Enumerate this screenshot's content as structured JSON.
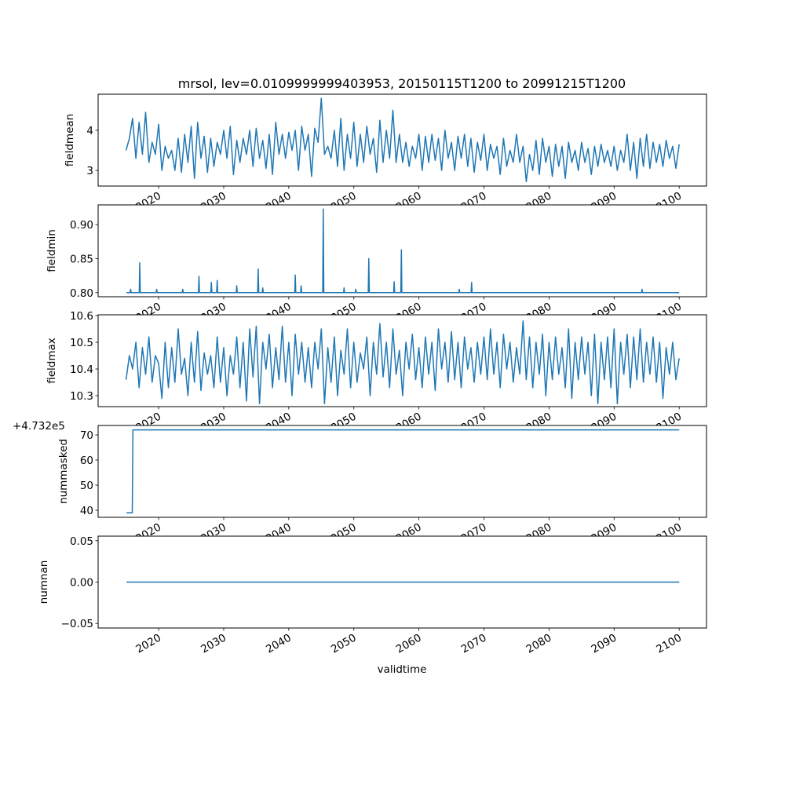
{
  "figure": {
    "title": "mrsol, lev=0.0109999999403953, 20150115T1200 to 20991215T1200",
    "xlabel": "validtime",
    "line_color": "#1f77b4"
  },
  "chart_data": [
    {
      "type": "line",
      "ylabel": "fieldmean",
      "xlim": [
        2010.7,
        2104.2
      ],
      "ylim": [
        2.61,
        4.9
      ],
      "yticks": [
        3,
        4
      ],
      "ytick_labels": [
        "3",
        "4"
      ],
      "xticks": [
        2020,
        2030,
        2040,
        2050,
        2060,
        2070,
        2080,
        2090,
        2100
      ],
      "xtick_labels": [
        "2020",
        "2030",
        "2040",
        "2050",
        "2060",
        "2070",
        "2080",
        "2090",
        "2100"
      ],
      "x_start": 2015.0,
      "x_step": 0.5,
      "values": [
        3.5,
        3.8,
        4.3,
        3.3,
        4.2,
        3.4,
        4.45,
        3.2,
        3.7,
        3.4,
        4.15,
        3.0,
        3.6,
        3.3,
        3.5,
        3.0,
        3.8,
        2.95,
        3.9,
        3.2,
        4.1,
        2.8,
        4.2,
        3.3,
        3.85,
        2.95,
        3.8,
        3.1,
        3.7,
        3.4,
        4.0,
        3.3,
        4.1,
        2.9,
        3.75,
        3.2,
        3.8,
        3.4,
        4.0,
        3.1,
        4.05,
        3.3,
        3.75,
        3.05,
        3.9,
        2.9,
        4.2,
        3.4,
        3.9,
        3.3,
        3.95,
        3.5,
        4.0,
        3.0,
        4.1,
        3.5,
        3.9,
        2.85,
        4.05,
        3.7,
        4.8,
        3.4,
        3.6,
        3.3,
        4.0,
        3.1,
        4.3,
        3.0,
        3.9,
        3.3,
        4.2,
        3.1,
        3.9,
        3.2,
        4.1,
        3.4,
        3.8,
        2.95,
        4.25,
        3.2,
        4.0,
        3.3,
        4.5,
        3.2,
        3.9,
        3.2,
        3.7,
        3.1,
        3.6,
        3.3,
        3.9,
        3.0,
        3.85,
        3.2,
        3.9,
        3.25,
        3.8,
        3.0,
        4.0,
        3.3,
        3.7,
        3.0,
        3.85,
        3.3,
        3.9,
        3.1,
        3.8,
        2.95,
        3.7,
        3.25,
        3.9,
        3.0,
        3.65,
        3.3,
        3.6,
        2.9,
        3.8,
        3.1,
        3.5,
        3.2,
        3.9,
        3.2,
        3.6,
        2.72,
        3.4,
        3.0,
        3.75,
        2.9,
        3.8,
        3.2,
        3.6,
        2.85,
        3.65,
        3.1,
        3.6,
        2.8,
        3.7,
        3.2,
        3.5,
        3.0,
        3.7,
        3.2,
        3.55,
        2.9,
        3.6,
        3.1,
        3.65,
        3.2,
        3.5,
        3.1,
        3.6,
        3.0,
        3.5,
        3.2,
        3.9,
        3.0,
        3.7,
        2.8,
        3.8,
        3.1,
        3.9,
        3.05,
        3.7,
        3.2,
        3.65,
        3.1,
        3.75,
        3.3,
        3.6,
        3.05,
        3.65
      ]
    },
    {
      "type": "line",
      "ylabel": "fieldmin",
      "xlim": [
        2010.7,
        2104.2
      ],
      "ylim": [
        0.794,
        0.929
      ],
      "yticks": [
        0.8,
        0.85,
        0.9
      ],
      "ytick_labels": [
        "0.80",
        "0.85",
        "0.90"
      ],
      "xticks": [
        2020,
        2030,
        2040,
        2050,
        2060,
        2070,
        2080,
        2090,
        2100
      ],
      "xtick_labels": [
        "2020",
        "2030",
        "2040",
        "2050",
        "2060",
        "2070",
        "2080",
        "2090",
        "2100"
      ],
      "baseline": 0.8,
      "x_range": [
        2015.05,
        2100.0
      ],
      "spikes": [
        [
          2015.7,
          0.805
        ],
        [
          2017.1,
          0.844
        ],
        [
          2019.7,
          0.805
        ],
        [
          2023.7,
          0.805
        ],
        [
          2026.2,
          0.824
        ],
        [
          2028.1,
          0.815
        ],
        [
          2029.0,
          0.818
        ],
        [
          2032.0,
          0.81
        ],
        [
          2035.3,
          0.835
        ],
        [
          2036.0,
          0.807
        ],
        [
          2041.0,
          0.826
        ],
        [
          2041.9,
          0.81
        ],
        [
          2045.3,
          0.923
        ],
        [
          2048.5,
          0.807
        ],
        [
          2050.3,
          0.805
        ],
        [
          2052.3,
          0.85
        ],
        [
          2056.2,
          0.816
        ],
        [
          2057.3,
          0.863
        ],
        [
          2066.2,
          0.805
        ],
        [
          2068.1,
          0.815
        ],
        [
          2094.3,
          0.805
        ]
      ]
    },
    {
      "type": "line",
      "ylabel": "fieldmax",
      "xlim": [
        2010.7,
        2104.2
      ],
      "ylim": [
        10.259,
        10.603
      ],
      "yticks": [
        10.3,
        10.4,
        10.5,
        10.6
      ],
      "ytick_labels": [
        "10.3",
        "10.4",
        "10.5",
        "10.6"
      ],
      "xticks": [
        2020,
        2030,
        2040,
        2050,
        2060,
        2070,
        2080,
        2090,
        2100
      ],
      "xtick_labels": [
        "2020",
        "2030",
        "2040",
        "2050",
        "2060",
        "2070",
        "2080",
        "2090",
        "2100"
      ],
      "x_start": 2015.0,
      "x_step": 0.5,
      "values": [
        10.36,
        10.45,
        10.4,
        10.5,
        10.33,
        10.48,
        10.38,
        10.52,
        10.35,
        10.45,
        10.42,
        10.29,
        10.5,
        10.33,
        10.48,
        10.35,
        10.55,
        10.38,
        10.44,
        10.3,
        10.5,
        10.35,
        10.54,
        10.32,
        10.46,
        10.38,
        10.45,
        10.33,
        10.52,
        10.35,
        10.48,
        10.3,
        10.45,
        10.38,
        10.52,
        10.33,
        10.5,
        10.28,
        10.55,
        10.37,
        10.56,
        10.27,
        10.5,
        10.4,
        10.53,
        10.33,
        10.48,
        10.36,
        10.56,
        10.35,
        10.5,
        10.3,
        10.53,
        10.38,
        10.5,
        10.35,
        10.48,
        10.33,
        10.5,
        10.4,
        10.55,
        10.27,
        10.48,
        10.35,
        10.52,
        10.3,
        10.47,
        10.38,
        10.55,
        10.33,
        10.5,
        10.35,
        10.46,
        10.4,
        10.52,
        10.3,
        10.5,
        10.38,
        10.57,
        10.37,
        10.5,
        10.33,
        10.55,
        10.38,
        10.47,
        10.3,
        10.5,
        10.4,
        10.53,
        10.36,
        10.48,
        10.33,
        10.52,
        10.38,
        10.5,
        10.32,
        10.55,
        10.4,
        10.5,
        10.35,
        10.54,
        10.36,
        10.5,
        10.33,
        10.52,
        10.4,
        10.48,
        10.35,
        10.5,
        10.38,
        10.52,
        10.36,
        10.55,
        10.38,
        10.5,
        10.33,
        10.53,
        10.4,
        10.5,
        10.35,
        10.48,
        10.38,
        10.58,
        10.36,
        10.52,
        10.33,
        10.5,
        10.38,
        10.53,
        10.3,
        10.5,
        10.36,
        10.52,
        10.38,
        10.48,
        10.33,
        10.55,
        10.29,
        10.5,
        10.36,
        10.52,
        10.38,
        10.5,
        10.3,
        10.53,
        10.27,
        10.5,
        10.36,
        10.52,
        10.33,
        10.55,
        10.27,
        10.5,
        10.38,
        10.53,
        10.33,
        10.52,
        10.36,
        10.55,
        10.35,
        10.5,
        10.38,
        10.52,
        10.35,
        10.5,
        10.29,
        10.48,
        10.38,
        10.5,
        10.36,
        10.44
      ]
    },
    {
      "type": "line",
      "ylabel": "nummasked",
      "offset_text": "+4.732e5",
      "xlim": [
        2010.7,
        2104.2
      ],
      "ylim": [
        37.2,
        73.75
      ],
      "yticks": [
        40,
        50,
        60,
        70
      ],
      "ytick_labels": [
        "40",
        "50",
        "60",
        "70"
      ],
      "xticks": [
        2020,
        2030,
        2040,
        2050,
        2060,
        2070,
        2080,
        2090,
        2100
      ],
      "xtick_labels": [
        "2020",
        "2030",
        "2040",
        "2050",
        "2060",
        "2070",
        "2080",
        "2090",
        "2100"
      ],
      "points": [
        [
          2015.05,
          39
        ],
        [
          2015.95,
          39
        ],
        [
          2016.05,
          72
        ],
        [
          2100.0,
          72
        ]
      ]
    },
    {
      "type": "line",
      "ylabel": "numnan",
      "xlim": [
        2010.7,
        2104.2
      ],
      "ylim": [
        -0.0555,
        0.0555
      ],
      "yticks": [
        -0.05,
        0.0,
        0.05
      ],
      "ytick_labels": [
        "−0.05",
        "0.00",
        "0.05"
      ],
      "xticks": [
        2020,
        2030,
        2040,
        2050,
        2060,
        2070,
        2080,
        2090,
        2100
      ],
      "xtick_labels": [
        "2020",
        "2030",
        "2040",
        "2050",
        "2060",
        "2070",
        "2080",
        "2090",
        "2100"
      ],
      "points": [
        [
          2015.05,
          0
        ],
        [
          2100.0,
          0
        ]
      ]
    }
  ]
}
